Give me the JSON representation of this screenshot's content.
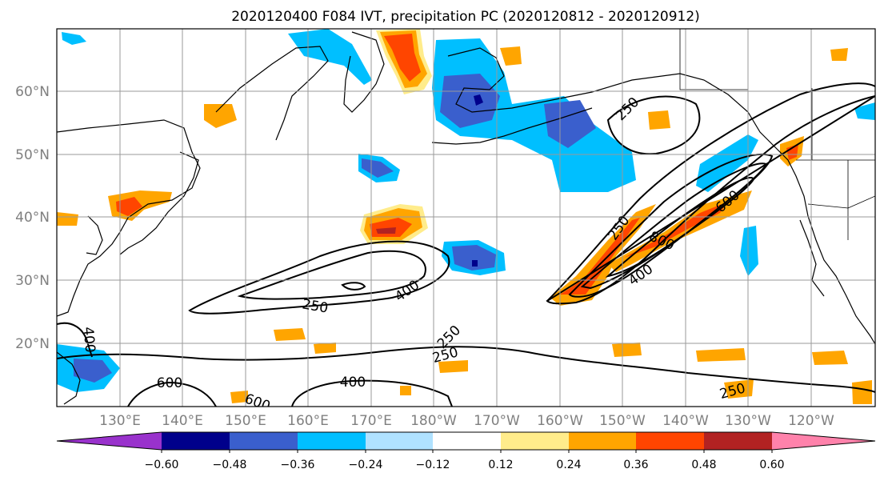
{
  "title": "2020120400 F084 IVT, precipitation PC (2020120812 - 2020120912)",
  "lat_labels": [
    "60°N",
    "50°N",
    "40°N",
    "30°N",
    "20°N"
  ],
  "lon_labels": [
    "130°E",
    "140°E",
    "150°E",
    "160°E",
    "170°E",
    "180°W",
    "170°W",
    "160°W",
    "150°W",
    "140°W",
    "130°W",
    "120°W"
  ],
  "contour_labels": [
    "250",
    "400",
    "250",
    "250",
    "400",
    "600",
    "800",
    "600",
    "250",
    "400",
    "600",
    "400",
    "250",
    "250",
    "400"
  ],
  "colorbar": {
    "colors": [
      "#9932cc",
      "#00008b",
      "#3a5fcd",
      "#00bfff",
      "#b0e2ff",
      "#ffffff",
      "#ffec8b",
      "#ffa500",
      "#ff4500",
      "#b22222",
      "#ff82ab"
    ],
    "tick_labels": [
      "−0.60",
      "−0.48",
      "−0.36",
      "−0.24",
      "−0.12",
      "0.12",
      "0.24",
      "0.36",
      "0.48",
      "0.60"
    ]
  }
}
